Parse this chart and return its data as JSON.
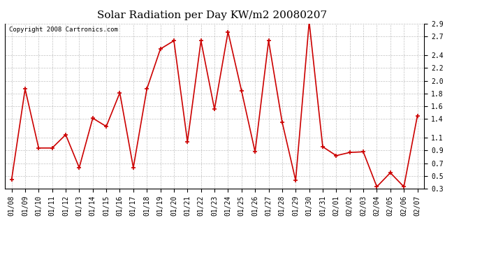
{
  "title": "Solar Radiation per Day KW/m2 20080207",
  "copyright_text": "Copyright 2008 Cartronics.com",
  "dates": [
    "01/08",
    "01/09",
    "01/10",
    "01/11",
    "01/12",
    "01/13",
    "01/14",
    "01/15",
    "01/16",
    "01/17",
    "01/18",
    "01/19",
    "01/20",
    "01/21",
    "01/22",
    "01/23",
    "01/24",
    "01/25",
    "01/26",
    "01/27",
    "01/28",
    "01/29",
    "01/30",
    "01/31",
    "02/01",
    "02/02",
    "02/03",
    "02/04",
    "02/05",
    "02/06",
    "02/07"
  ],
  "values": [
    0.44,
    1.87,
    0.94,
    0.94,
    1.15,
    0.63,
    1.41,
    1.28,
    1.81,
    0.63,
    1.87,
    2.5,
    2.63,
    1.04,
    2.63,
    1.55,
    2.77,
    1.84,
    0.88,
    2.63,
    1.35,
    0.43,
    2.93,
    0.96,
    0.82,
    0.87,
    0.88,
    0.33,
    0.55,
    0.33,
    1.45
  ],
  "line_color": "#cc0000",
  "marker_color": "#cc0000",
  "bg_color": "#ffffff",
  "plot_bg_color": "#ffffff",
  "grid_color": "#999999",
  "ylim": [
    0.3,
    2.9
  ],
  "yticks": [
    0.3,
    0.5,
    0.7,
    0.9,
    1.1,
    1.4,
    1.6,
    1.8,
    2.0,
    2.2,
    2.4,
    2.7,
    2.9
  ],
  "title_fontsize": 11,
  "tick_fontsize": 7,
  "copyright_fontsize": 6.5
}
